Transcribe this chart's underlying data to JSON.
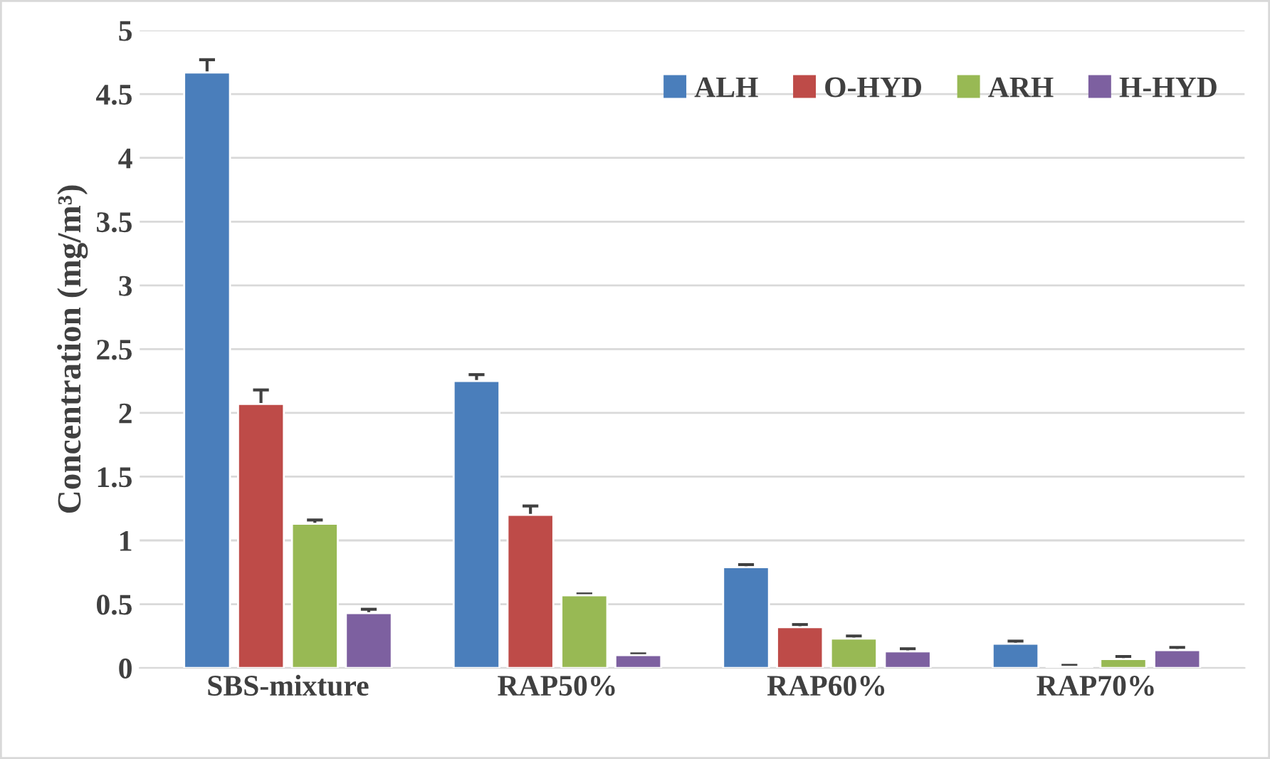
{
  "chart_data": {
    "type": "bar",
    "ylabel": "Concentration (mg/m³)",
    "categories": [
      "SBS-mixture",
      "RAP50%",
      "RAP60%",
      "RAP70%"
    ],
    "series": [
      {
        "name": "ALH",
        "color": "#4a7ebb",
        "values": [
          4.67,
          2.25,
          0.79,
          0.19
        ],
        "errors": [
          0.1,
          0.05,
          0.02,
          0.02
        ]
      },
      {
        "name": "O-HYD",
        "color": "#be4b48",
        "values": [
          2.07,
          1.2,
          0.32,
          0.01
        ],
        "errors": [
          0.11,
          0.07,
          0.02,
          0.01
        ]
      },
      {
        "name": "ARH",
        "color": "#98b954",
        "values": [
          1.13,
          0.57,
          0.23,
          0.07
        ],
        "errors": [
          0.03,
          0.01,
          0.02,
          0.02
        ]
      },
      {
        "name": "H-HYD",
        "color": "#7d60a0",
        "values": [
          0.43,
          0.1,
          0.13,
          0.14
        ],
        "errors": [
          0.03,
          0.01,
          0.02,
          0.02
        ]
      }
    ],
    "ylim": [
      0,
      5
    ],
    "yticks": [
      0,
      0.5,
      1,
      1.5,
      2,
      2.5,
      3,
      3.5,
      4,
      4.5,
      5
    ],
    "grid": "y",
    "legend": "top right"
  }
}
